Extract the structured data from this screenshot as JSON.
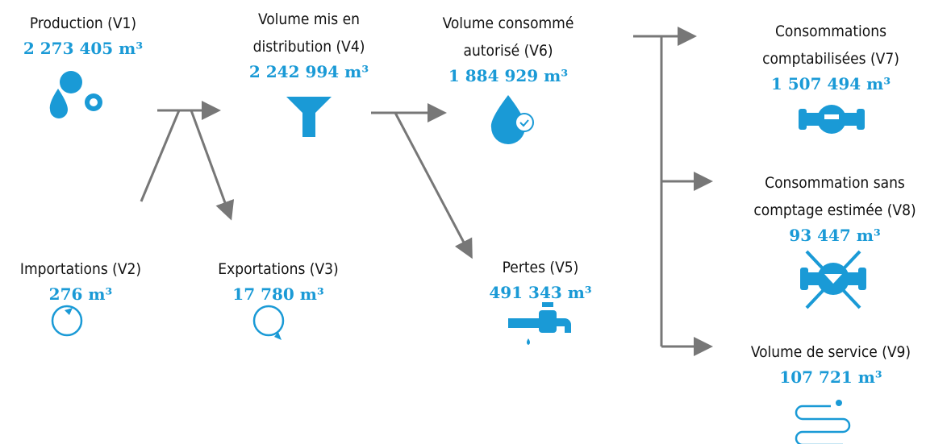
{
  "nodes": [
    {
      "label_lines": [
        "Production (V1)"
      ],
      "value": "2 273 405 m³"
    },
    {
      "label_lines": [
        "Importations (V2)"
      ],
      "value": "276 m³"
    },
    {
      "label_lines": [
        "Exportations (V3)"
      ],
      "value": "17 780 m³"
    },
    {
      "label_lines": [
        "Volume mis en",
        "distribution (V4)"
      ],
      "value": "2 242 994 m³"
    },
    {
      "label_lines": [
        "Pertes (V5)"
      ],
      "value": "491 343 m³"
    },
    {
      "label_lines": [
        "Volume consommé",
        "autorisé (V6)"
      ],
      "value": "1 884 929 m³"
    },
    {
      "label_lines": [
        "Consommations",
        "comptabilisées (V7)"
      ],
      "value": "1 507 494 m³"
    },
    {
      "label_lines": [
        "Consommation sans",
        "comptage estimée (V8)"
      ],
      "value": "93 447 m³"
    },
    {
      "label_lines": [
        "Volume de service (V9)"
      ],
      "value": "107 721 m³"
    }
  ]
}
